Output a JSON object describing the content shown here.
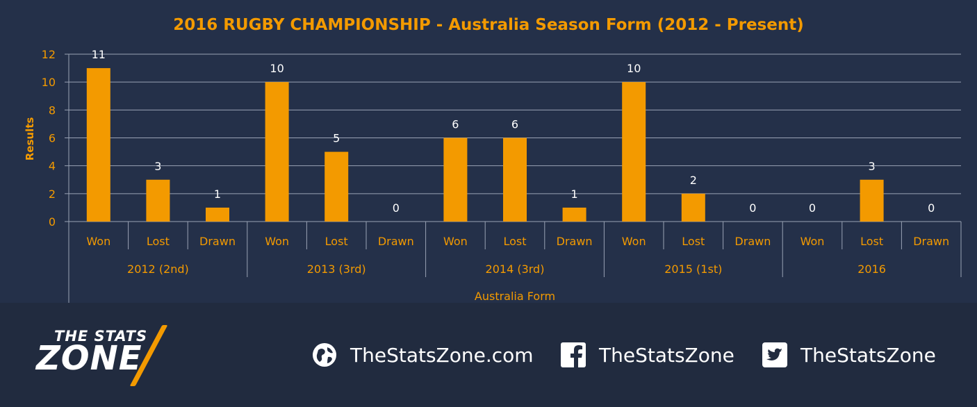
{
  "chart_data": {
    "type": "bar",
    "title": "2016 RUGBY CHAMPIONSHIP - Australia Season Form (2012 - Present)",
    "ylabel": "Results",
    "xlabel": "Australia Form",
    "ylim": [
      0,
      12
    ],
    "yticks": [
      0,
      2,
      4,
      6,
      8,
      10,
      12
    ],
    "grid": true,
    "groups": [
      "2012 (2nd)",
      "2013 (3rd)",
      "2014 (3rd)",
      "2015 (1st)",
      "2016"
    ],
    "subcategories": [
      "Won",
      "Lost",
      "Drawn"
    ],
    "values": [
      [
        11,
        3,
        1
      ],
      [
        10,
        5,
        0
      ],
      [
        6,
        6,
        1
      ],
      [
        10,
        2,
        0
      ],
      [
        0,
        3,
        0
      ]
    ],
    "bar_color": "#f39a00"
  },
  "colors": {
    "accent": "#f39a00",
    "panel": "#243049",
    "footer": "#212b3f",
    "grid": "#9aa3b5",
    "label": "#f39a00",
    "data_label": "#ffffff"
  },
  "footer": {
    "logo_top": "THE STATS",
    "logo_bottom": "ZONE",
    "website": "TheStatsZone.com",
    "facebook": "TheStatsZone",
    "twitter": "TheStatsZone",
    "icons": {
      "website": "globe-icon",
      "facebook": "facebook-icon",
      "twitter": "twitter-icon"
    }
  }
}
